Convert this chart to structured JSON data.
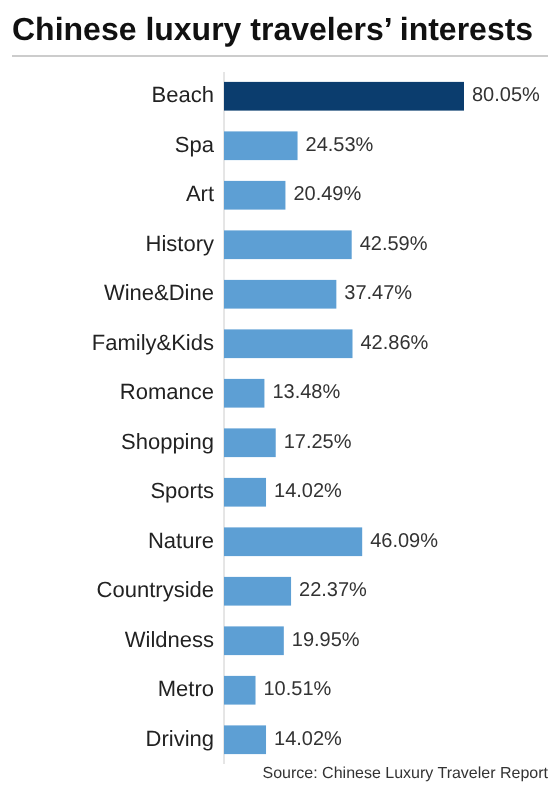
{
  "chart_data": {
    "type": "bar",
    "orientation": "horizontal",
    "title": "Chinese luxury travelers’ interests",
    "categories": [
      "Beach",
      "Spa",
      "Art",
      "History",
      "Wine&Dine",
      "Family&Kids",
      "Romance",
      "Shopping",
      "Sports",
      "Nature",
      "Countryside",
      "Wildness",
      "Metro",
      "Driving"
    ],
    "values": [
      80.05,
      24.53,
      20.49,
      42.59,
      37.47,
      42.86,
      13.48,
      17.25,
      14.02,
      46.09,
      22.37,
      19.95,
      10.51,
      14.02
    ],
    "value_labels": [
      "80.05%",
      "24.53%",
      "20.49%",
      "42.59%",
      "37.47%",
      "42.86%",
      "13.48%",
      "17.25%",
      "14.02%",
      "46.09%",
      "22.37%",
      "19.95%",
      "10.51%",
      "14.02%"
    ],
    "colors": [
      "#0b3d6e",
      "#5d9fd4",
      "#5d9fd4",
      "#5d9fd4",
      "#5d9fd4",
      "#5d9fd4",
      "#5d9fd4",
      "#5d9fd4",
      "#5d9fd4",
      "#5d9fd4",
      "#5d9fd4",
      "#5d9fd4",
      "#5d9fd4",
      "#5d9fd4"
    ],
    "annotations": [
      "Source: Chinese Luxury Traveler Report"
    ]
  }
}
